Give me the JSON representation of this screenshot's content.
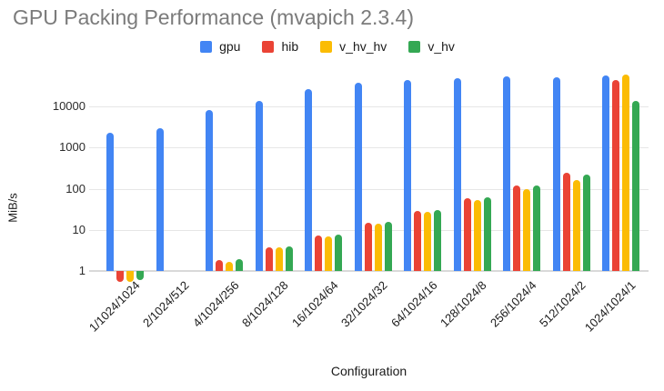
{
  "title": "GPU Packing Performance (mvapich 2.3.4)",
  "axes": {
    "y_title": "MiB/s",
    "x_title": "Configuration"
  },
  "colors": {
    "gpu": "#4285F4",
    "hib": "#EA4335",
    "v_hv_hv": "#FBBC04",
    "v_hv": "#34A853"
  },
  "chart_data": {
    "type": "bar",
    "title": "GPU Packing Performance (mvapich 2.3.4)",
    "xlabel": "Configuration",
    "ylabel": "MiB/s",
    "y_scale": "log",
    "y_ticks": [
      10000,
      1000,
      100,
      10,
      1
    ],
    "grid": true,
    "legend_position": "top-center",
    "categories": [
      "1/1024/1024",
      "2/1024/512",
      "4/1024/256",
      "8/1024/128",
      "16/1024/64",
      "32/1024/32",
      "64/1024/16",
      "128/1024/8",
      "256/1024/4",
      "512/1024/2",
      "1024/1024/1"
    ],
    "series": [
      {
        "name": "gpu",
        "color": "#4285F4",
        "values": [
          2300,
          2900,
          8400,
          13500,
          26000,
          38000,
          45000,
          49000,
          55000,
          51000,
          58000
        ]
      },
      {
        "name": "hib",
        "color": "#EA4335",
        "values": [
          0.55,
          null,
          1.8,
          3.7,
          7.2,
          15,
          29,
          59,
          120,
          240,
          45000
        ]
      },
      {
        "name": "v_hv_hv",
        "color": "#FBBC04",
        "values": [
          0.55,
          null,
          1.7,
          3.7,
          7.0,
          14,
          28,
          53,
          100,
          160,
          59000
        ]
      },
      {
        "name": "v_hv",
        "color": "#34A853",
        "values": [
          0.6,
          null,
          1.9,
          3.9,
          7.5,
          16,
          31,
          61,
          122,
          225,
          14000
        ]
      }
    ]
  }
}
